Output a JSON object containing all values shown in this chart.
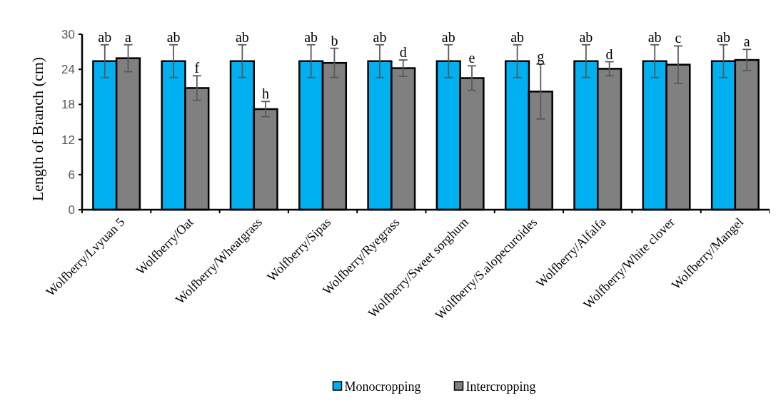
{
  "chart_data": {
    "type": "bar",
    "ylabel": "Length of Branch (cm)",
    "categories": [
      "Wolfberry/Lvyuan 5",
      "Wolfberry/Oat",
      "Wolfberry/Wheatgrass",
      "Wolfberry/Sipas",
      "Wolfberry/Ryegrass",
      "Wolfberry/Sweet sorghum",
      "Wolfberry/S.alopecuroides",
      "Wolfberry/Alfalfa",
      "Wolfberry/White clover",
      "Wolfberry/Mangel"
    ],
    "series": [
      {
        "name": "Monocropping",
        "color": "#00b0f0",
        "values": [
          25.4,
          25.4,
          25.4,
          25.4,
          25.4,
          25.4,
          25.4,
          25.4,
          25.4,
          25.4
        ],
        "errors": [
          2.8,
          2.8,
          2.8,
          2.8,
          2.8,
          2.8,
          2.8,
          2.8,
          2.8,
          2.8
        ],
        "value_labels": [
          "ab",
          "ab",
          "ab",
          "ab",
          "ab",
          "ab",
          "ab",
          "ab",
          "ab",
          "ab"
        ]
      },
      {
        "name": "Intercropping",
        "color": "#808080",
        "values": [
          25.9,
          20.8,
          17.2,
          25.1,
          24.2,
          22.5,
          20.2,
          24.1,
          24.8,
          25.6
        ],
        "errors": [
          2.3,
          2.1,
          1.3,
          2.5,
          1.4,
          2.1,
          4.7,
          1.2,
          3.2,
          1.8
        ],
        "value_labels": [
          "a",
          "f",
          "h",
          "b",
          "d",
          "e",
          "g",
          "d",
          "c",
          "a"
        ]
      }
    ],
    "ylim": [
      0,
      30
    ],
    "yticks": [
      0,
      6,
      12,
      18,
      24,
      30
    ],
    "grid": false,
    "legend": "bottom"
  }
}
